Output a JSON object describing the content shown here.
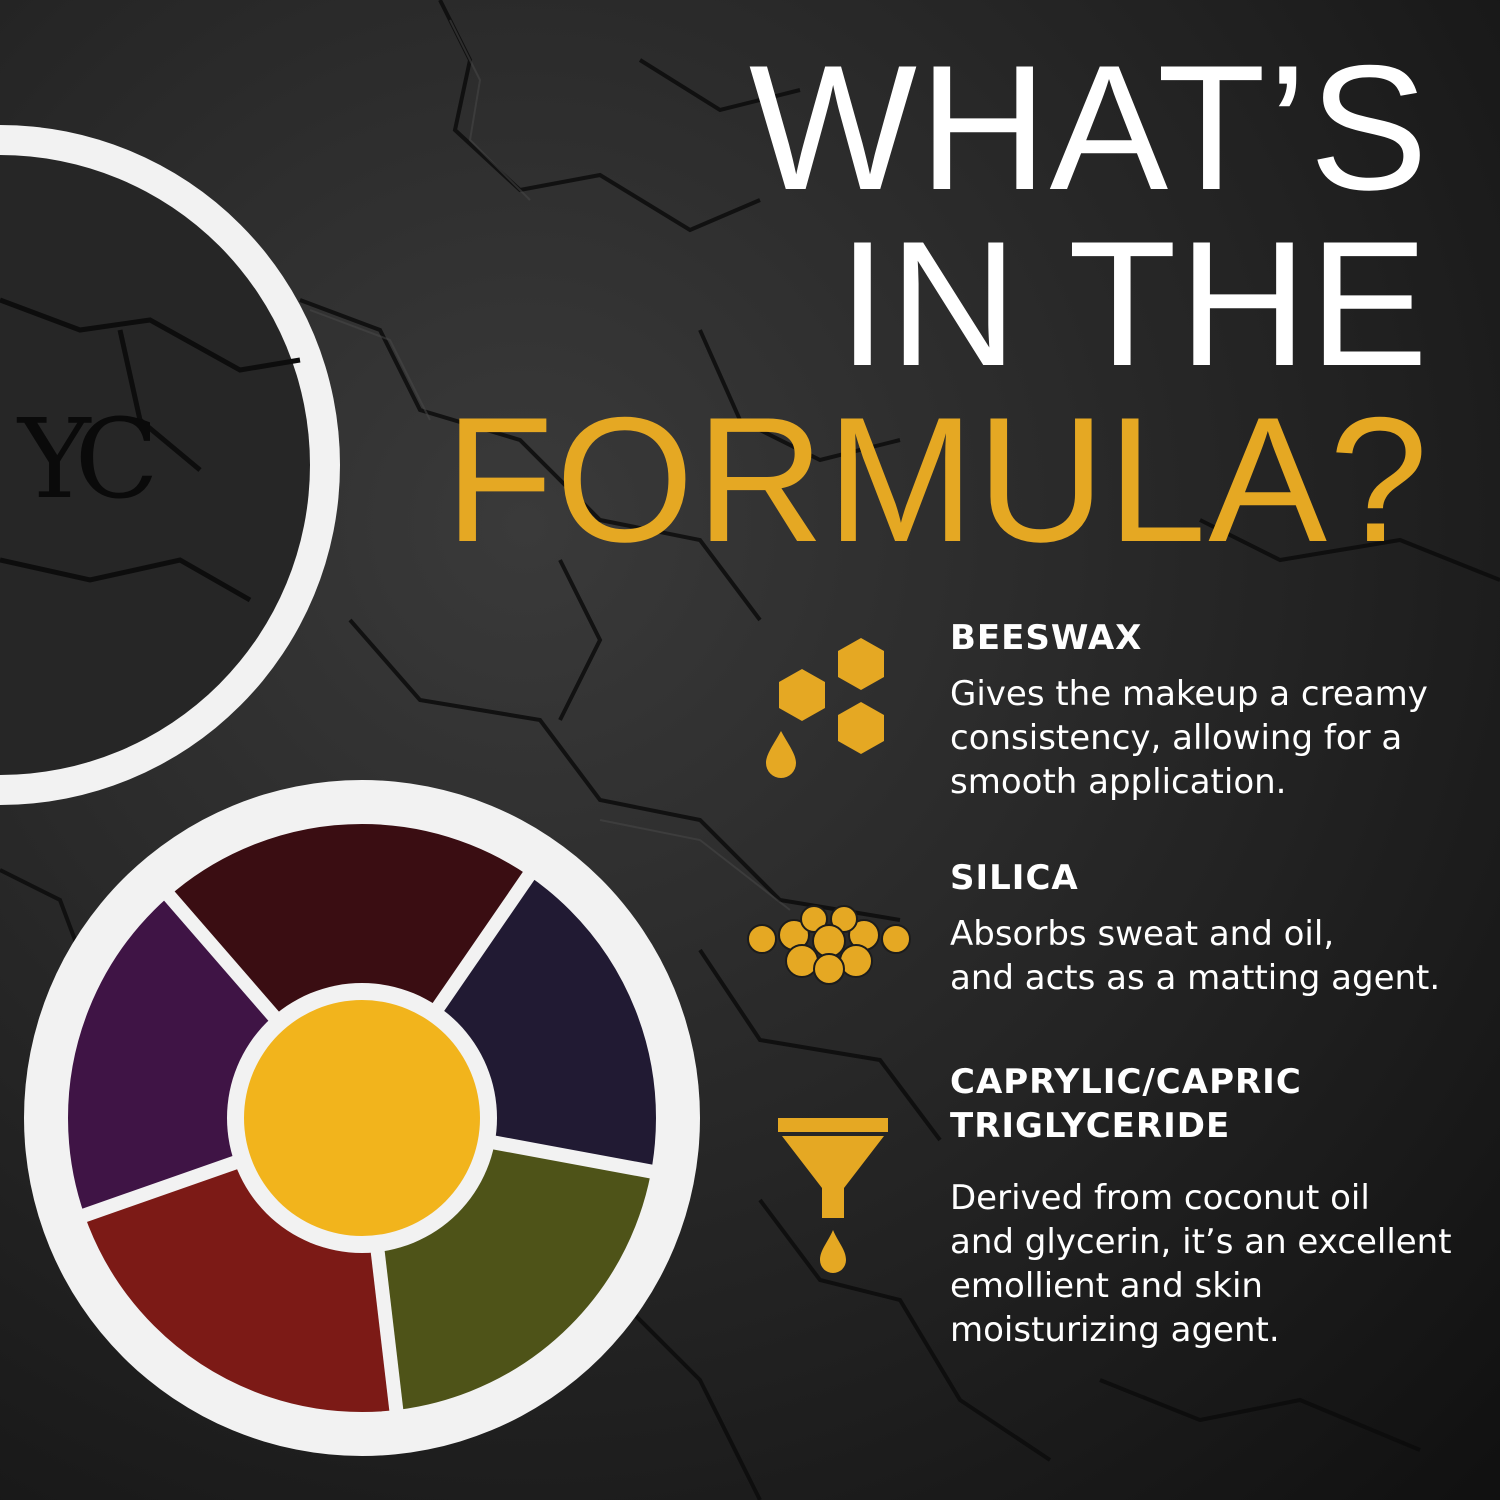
{
  "colors": {
    "background": "#1c1c1c",
    "headline_white": "#ffffff",
    "headline_gold": "#e5a823",
    "icon_gold": "#e5a823",
    "text_white": "#ffffff",
    "jar_rim": "#f2f2f2",
    "well_center_yellow": "#f2b41c",
    "well_dark_red": "#3a0d12",
    "well_navy": "#211a33",
    "well_olive": "#4e5318",
    "well_red": "#7c1a16",
    "well_purple": "#3f1445"
  },
  "headline": {
    "line1": "WHAT’S",
    "line2": "IN THE",
    "line3": "FORMULA?"
  },
  "brand_mark": "YC",
  "ingredients": [
    {
      "icon": "honeycomb-drop-icon",
      "name": "BEESWAX",
      "description": "Gives the makeup a creamy\nconsistency, allowing for a\nsmooth application."
    },
    {
      "icon": "spheres-icon",
      "name": "SILICA",
      "description": "Absorbs sweat and oil,\nand acts as a matting agent."
    },
    {
      "icon": "funnel-drop-icon",
      "name": "CAPRYLIC/CAPRIC\nTRIGLYCERIDE",
      "description": "Derived from coconut oil\nand glycerin, it’s an excellent\nemollient and skin\nmoisturizing agent."
    }
  ]
}
